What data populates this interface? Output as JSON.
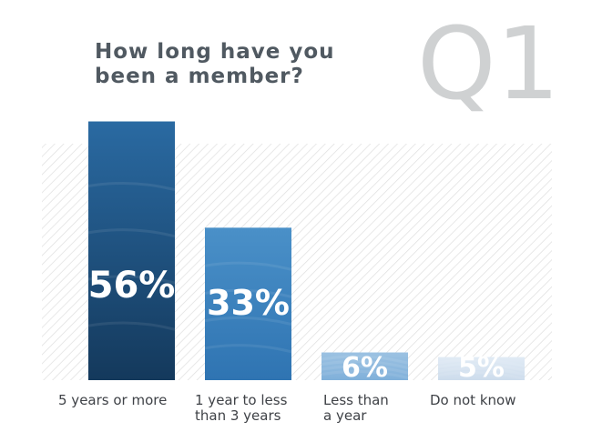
{
  "header": {
    "title_line1": "How long have you",
    "title_line2": "been a member?",
    "question_mark": "Q1"
  },
  "chart_data": {
    "type": "bar",
    "categories": [
      "5 years or more",
      "1 year to less than 3 years",
      "Less than a year",
      "Do not know"
    ],
    "category_lines": [
      [
        "5 years or more"
      ],
      [
        "1 year to less",
        "than 3 years"
      ],
      [
        "Less than",
        "a year"
      ],
      [
        "Do not know"
      ]
    ],
    "values": [
      56,
      33,
      6,
      5
    ],
    "value_labels": [
      "56%",
      "33%",
      "6%",
      "5%"
    ],
    "title": "How long have you been a member?",
    "ylim": [
      0,
      100
    ],
    "grid": false,
    "colors": {
      "bar_top": [
        "#2a6aa2",
        "#4a90c8",
        "#9cc2e2",
        "#e1ebf5"
      ],
      "bar_bottom": [
        "#14395c",
        "#2f74b2",
        "#80b0da",
        "#cddcec"
      ],
      "label": "#ffffff",
      "hatch": "#dedede"
    }
  }
}
